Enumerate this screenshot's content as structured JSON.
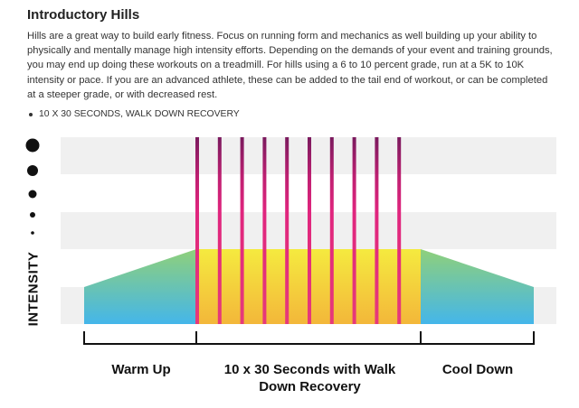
{
  "title": "Introductory Hills",
  "description": "Hills are a great way to build early fitness. Focus on running form and mechanics as well building up your ability to physically and mentally manage high intensity efforts. Depending on the demands of your event and training grounds, you may end up doing these workouts on a treadmill. For hills using a 6 to 10 percent grade, run at a 5K to 10K intensity or pace. If you are an advanced athlete, these can be added to the tail end of workout, or can be completed at a steeper grade, or with decreased rest.",
  "bullets": [
    "10 X 30 SECONDS, WALK DOWN RECOVERY"
  ],
  "diagram": {
    "y_axis_label": "INTENSITY",
    "phases": {
      "warm_up": "Warm Up",
      "main_set": "10 x 30 Seconds with Walk Down Recovery",
      "cool_down": "Cool Down"
    },
    "interval_count": 10,
    "colors": {
      "band": "#f0f0f0",
      "interval_top": "#7a1a5e",
      "interval_bottom": "#e0257e",
      "main_top": "#f5ea3f",
      "main_bottom": "#f3b73a",
      "ramp_top": "#8fd07a",
      "ramp_bottom": "#44b6ea"
    }
  }
}
